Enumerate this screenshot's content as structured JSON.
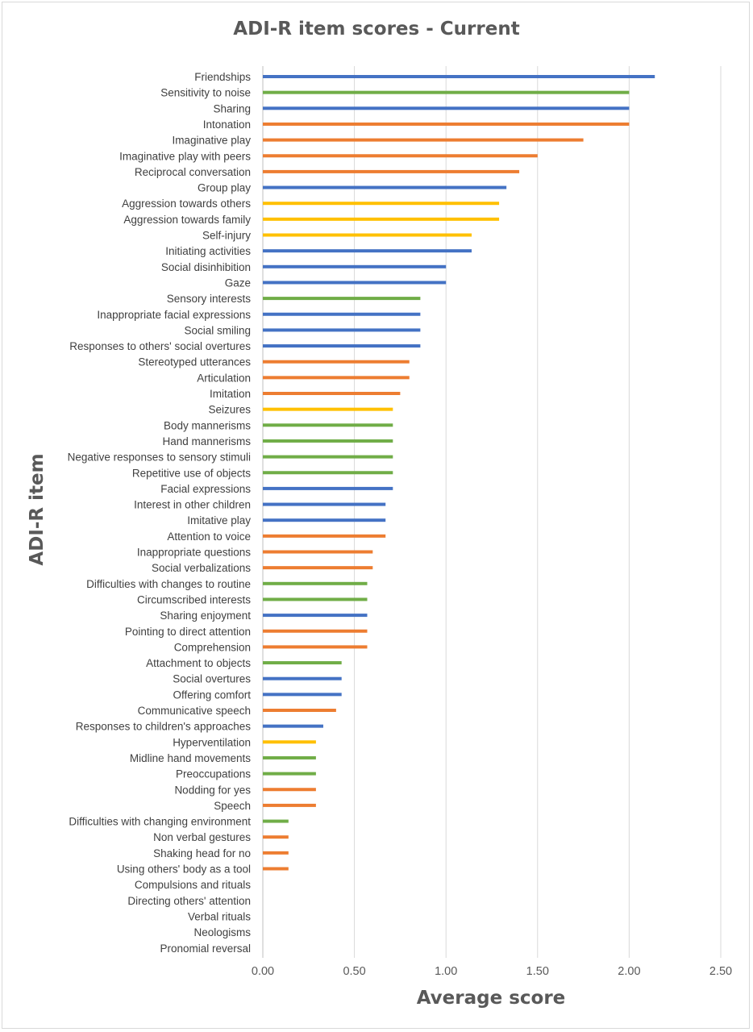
{
  "chart_data": {
    "type": "bar",
    "orientation": "horizontal",
    "title": "ADI-R item scores - Current",
    "xlabel": "Average score",
    "ylabel": "ADI-R item",
    "xlim": [
      0,
      2.5
    ],
    "xticks": [
      "0.00",
      "0.50",
      "1.00",
      "1.50",
      "2.00",
      "2.50"
    ],
    "grid": "vertical",
    "colors": {
      "blue": "#4472c4",
      "green": "#70ad47",
      "orange": "#ed7d31",
      "yellow": "#ffc000",
      "grid": "#d9d9d9",
      "axis": "#bfbfbf"
    },
    "items": [
      {
        "label": "Friendships",
        "value": 2.14,
        "color": "blue"
      },
      {
        "label": "Sensitivity to noise",
        "value": 2.0,
        "color": "green"
      },
      {
        "label": "Sharing",
        "value": 2.0,
        "color": "blue"
      },
      {
        "label": "Intonation",
        "value": 2.0,
        "color": "orange"
      },
      {
        "label": "Imaginative play",
        "value": 1.75,
        "color": "orange"
      },
      {
        "label": "Imaginative play with peers",
        "value": 1.5,
        "color": "orange"
      },
      {
        "label": "Reciprocal conversation",
        "value": 1.4,
        "color": "orange"
      },
      {
        "label": "Group play",
        "value": 1.33,
        "color": "blue"
      },
      {
        "label": "Aggression towards others",
        "value": 1.29,
        "color": "yellow"
      },
      {
        "label": "Aggression towards family",
        "value": 1.29,
        "color": "yellow"
      },
      {
        "label": "Self-injury",
        "value": 1.14,
        "color": "yellow"
      },
      {
        "label": "Initiating activities",
        "value": 1.14,
        "color": "blue"
      },
      {
        "label": "Social disinhibition",
        "value": 1.0,
        "color": "blue"
      },
      {
        "label": "Gaze",
        "value": 1.0,
        "color": "blue"
      },
      {
        "label": "Sensory interests",
        "value": 0.86,
        "color": "green"
      },
      {
        "label": "Inappropriate facial expressions",
        "value": 0.86,
        "color": "blue"
      },
      {
        "label": "Social smiling",
        "value": 0.86,
        "color": "blue"
      },
      {
        "label": "Responses to others' social overtures",
        "value": 0.86,
        "color": "blue"
      },
      {
        "label": "Stereotyped utterances",
        "value": 0.8,
        "color": "orange"
      },
      {
        "label": "Articulation",
        "value": 0.8,
        "color": "orange"
      },
      {
        "label": "Imitation",
        "value": 0.75,
        "color": "orange"
      },
      {
        "label": "Seizures",
        "value": 0.71,
        "color": "yellow"
      },
      {
        "label": "Body mannerisms",
        "value": 0.71,
        "color": "green"
      },
      {
        "label": "Hand mannerisms",
        "value": 0.71,
        "color": "green"
      },
      {
        "label": "Negative responses to sensory stimuli",
        "value": 0.71,
        "color": "green"
      },
      {
        "label": "Repetitive use of objects",
        "value": 0.71,
        "color": "green"
      },
      {
        "label": "Facial expressions",
        "value": 0.71,
        "color": "blue"
      },
      {
        "label": "Interest in other children",
        "value": 0.67,
        "color": "blue"
      },
      {
        "label": "Imitative play",
        "value": 0.67,
        "color": "blue"
      },
      {
        "label": "Attention  to voice",
        "value": 0.67,
        "color": "orange"
      },
      {
        "label": "Inappropriate questions",
        "value": 0.6,
        "color": "orange"
      },
      {
        "label": "Social verbalizations",
        "value": 0.6,
        "color": "orange"
      },
      {
        "label": "Difficulties with changes to routine",
        "value": 0.57,
        "color": "green"
      },
      {
        "label": "Circumscribed interests",
        "value": 0.57,
        "color": "green"
      },
      {
        "label": "Sharing enjoyment",
        "value": 0.57,
        "color": "blue"
      },
      {
        "label": "Pointing to direct attention",
        "value": 0.57,
        "color": "orange"
      },
      {
        "label": "Comprehension",
        "value": 0.57,
        "color": "orange"
      },
      {
        "label": "Attachment to objects",
        "value": 0.43,
        "color": "green"
      },
      {
        "label": "Social overtures",
        "value": 0.43,
        "color": "blue"
      },
      {
        "label": "Offering comfort",
        "value": 0.43,
        "color": "blue"
      },
      {
        "label": "Communicative speech",
        "value": 0.4,
        "color": "orange"
      },
      {
        "label": "Responses to children's approaches",
        "value": 0.33,
        "color": "blue"
      },
      {
        "label": "Hyperventilation",
        "value": 0.29,
        "color": "yellow"
      },
      {
        "label": "Midline hand movements",
        "value": 0.29,
        "color": "green"
      },
      {
        "label": "Preoccupations",
        "value": 0.29,
        "color": "green"
      },
      {
        "label": "Nodding for yes",
        "value": 0.29,
        "color": "orange"
      },
      {
        "label": "Speech",
        "value": 0.29,
        "color": "orange"
      },
      {
        "label": "Difficulties with changing environment",
        "value": 0.14,
        "color": "green"
      },
      {
        "label": "Non verbal gestures",
        "value": 0.14,
        "color": "orange"
      },
      {
        "label": "Shaking head for no",
        "value": 0.14,
        "color": "orange"
      },
      {
        "label": "Using others' body as a tool",
        "value": 0.14,
        "color": "orange"
      },
      {
        "label": "Compulsions and rituals",
        "value": 0,
        "color": "green"
      },
      {
        "label": "Directing others' attention",
        "value": 0,
        "color": "blue"
      },
      {
        "label": "Verbal rituals",
        "value": 0,
        "color": "orange"
      },
      {
        "label": "Neologisms",
        "value": 0,
        "color": "orange"
      },
      {
        "label": "Pronomial reversal",
        "value": 0,
        "color": "orange"
      }
    ]
  }
}
